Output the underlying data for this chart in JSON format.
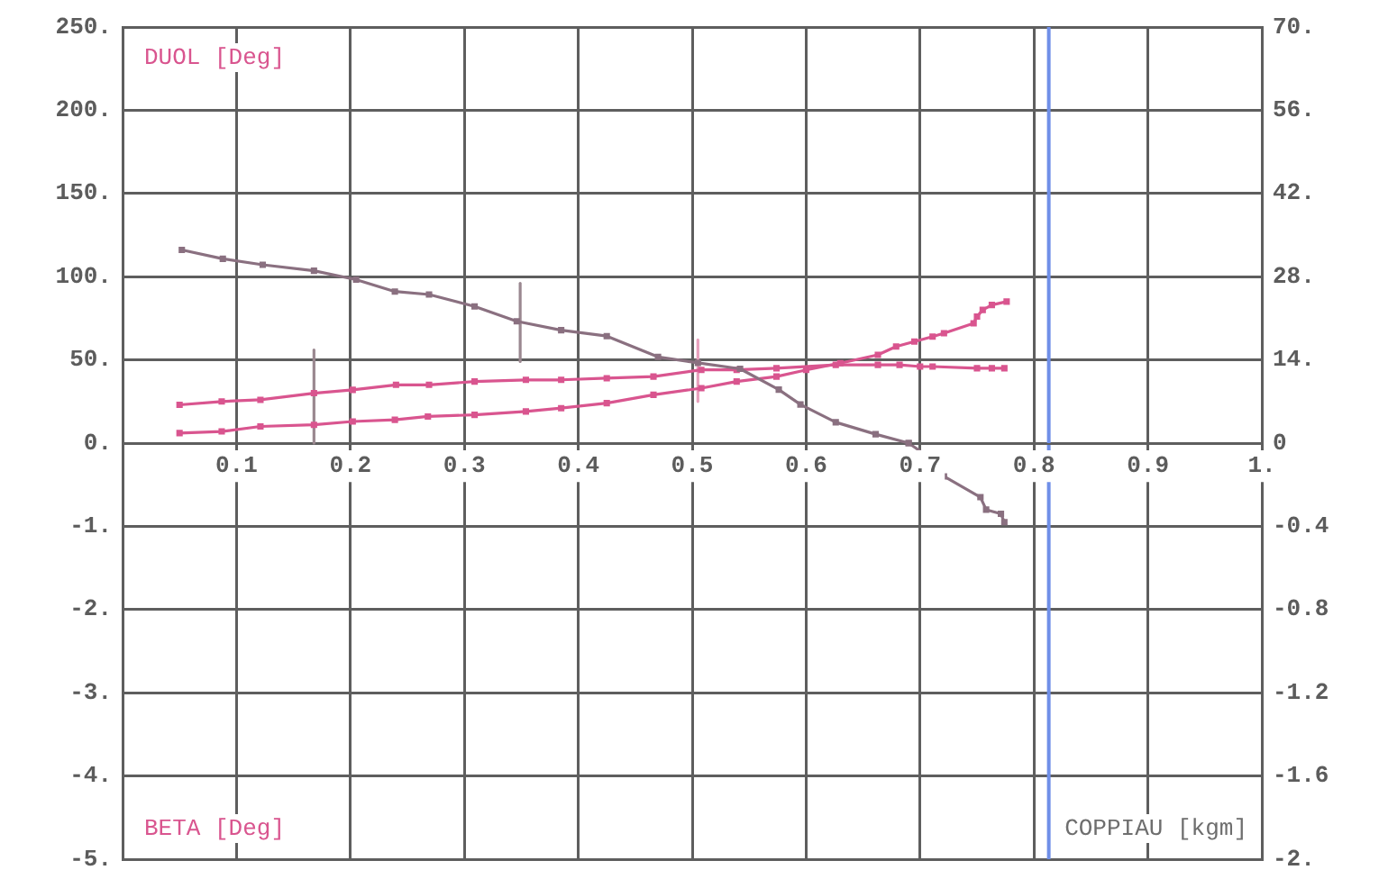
{
  "chart_data": [
    {
      "type": "line",
      "ylabel": "DUOL [Deg]",
      "xlim": [
        0,
        1
      ],
      "xticks": [
        0.1,
        0.2,
        0.3,
        0.4,
        0.5,
        0.6,
        0.7,
        0.8,
        0.9,
        {
          "value": 1,
          "label": "1."
        }
      ],
      "ylim": [
        0,
        250
      ],
      "yticks": [
        {
          "value": 0,
          "label": "0."
        },
        {
          "value": 50,
          "label": "50."
        },
        {
          "value": 100,
          "label": "100."
        },
        {
          "value": 150,
          "label": "150."
        },
        {
          "value": 200,
          "label": "200."
        },
        {
          "value": 250,
          "label": "250."
        }
      ],
      "y2lim": [
        0,
        70
      ],
      "y2ticks": [
        0,
        {
          "value": 14,
          "label": "14."
        },
        {
          "value": 28,
          "label": "28."
        },
        {
          "value": 42,
          "label": "42."
        },
        {
          "value": 56,
          "label": "56."
        },
        {
          "value": 70,
          "label": "70."
        }
      ],
      "grid": true,
      "marker": "square",
      "ref_lines": [
        {
          "axis": "x",
          "value": 0.813,
          "color": "#6f8fe8"
        }
      ],
      "series": [
        {
          "color": "#8a7080",
          "axis": "y2",
          "x": [
            0.052,
            0.088,
            0.123,
            0.168,
            0.205,
            0.239,
            0.269,
            0.309,
            0.346,
            0.385,
            0.425,
            0.47,
            0.505,
            0.542,
            0.576,
            0.595,
            0.626,
            0.661,
            0.69
          ],
          "values": [
            32.5,
            31,
            30,
            29,
            27.5,
            25.5,
            25,
            23,
            20.5,
            19,
            18,
            14.5,
            13.5,
            12.5,
            9,
            6.5,
            3.5,
            1.5,
            0
          ]
        },
        {
          "color": "#d9558f",
          "x": [
            0.05,
            0.087,
            0.121,
            0.168,
            0.202,
            0.24,
            0.269,
            0.309,
            0.354,
            0.385,
            0.425,
            0.466,
            0.508,
            0.539,
            0.574,
            0.626,
            0.663,
            0.682,
            0.7,
            0.711,
            0.75,
            0.763,
            0.774
          ],
          "values": [
            23,
            25,
            26,
            30,
            32,
            35,
            35,
            37,
            38,
            38,
            39,
            40,
            44,
            44,
            45,
            47,
            47,
            47,
            46,
            46,
            45,
            45,
            45
          ]
        },
        {
          "color": "#d9558f",
          "x": [
            0.05,
            0.087,
            0.121,
            0.168,
            0.202,
            0.239,
            0.268,
            0.309,
            0.354,
            0.385,
            0.425,
            0.466,
            0.508,
            0.539,
            0.574,
            0.6,
            0.63,
            0.663,
            0.679,
            0.695,
            0.711,
            0.721,
            0.747,
            0.75,
            0.755,
            0.763,
            0.776
          ],
          "values": [
            6,
            7,
            10,
            11,
            13,
            14,
            16,
            17,
            19,
            21,
            24,
            29,
            33,
            37,
            40,
            44,
            48,
            53,
            58,
            61,
            64,
            66,
            72,
            76,
            80,
            83,
            85
          ]
        },
        {
          "color": "#9a8890",
          "marker": "none",
          "x": [
            0.168,
            0.168
          ],
          "values": [
            0,
            56
          ]
        },
        {
          "color": "#9a8890",
          "marker": "none",
          "x": [
            0.349,
            0.349
          ],
          "values": [
            49,
            96
          ]
        },
        {
          "color": "#e8a0bc",
          "marker": "none",
          "x": [
            0.505,
            0.505
          ],
          "values": [
            25,
            62
          ]
        }
      ]
    },
    {
      "type": "line",
      "ylabel": "BETA [Deg]",
      "y2label": "COPPIAU [kgm]",
      "tick_labels": "y",
      "xlim": [
        0,
        1
      ],
      "xticks": [
        0.1,
        0.2,
        0.3,
        0.4,
        0.5,
        0.6,
        0.7,
        0.8,
        0.9,
        1
      ],
      "ylim": [
        -5,
        0
      ],
      "yticks": [
        {
          "value": -5,
          "label": "-5."
        },
        {
          "value": -4,
          "label": "-4."
        },
        {
          "value": -3,
          "label": "-3."
        },
        {
          "value": -2,
          "label": "-2."
        },
        {
          "value": -1,
          "label": "-1."
        }
      ],
      "y2lim": [
        -2,
        0
      ],
      "y2ticks": [
        {
          "value": -2,
          "label": "-2."
        },
        -1.6,
        -1.2,
        -0.8,
        -0.4
      ],
      "grid": true,
      "marker": "square",
      "ref_lines": [
        {
          "axis": "x",
          "value": 0.813,
          "color": "#6f8fe8"
        }
      ],
      "series": [
        {
          "color": "#8a7080",
          "axis": "y2",
          "x": [
            0.69,
            0.711,
            0.721,
            0.753,
            0.758,
            0.771,
            0.774
          ],
          "values": [
            0,
            -0.08,
            -0.16,
            -0.26,
            -0.32,
            -0.34,
            -0.38
          ]
        }
      ]
    }
  ]
}
